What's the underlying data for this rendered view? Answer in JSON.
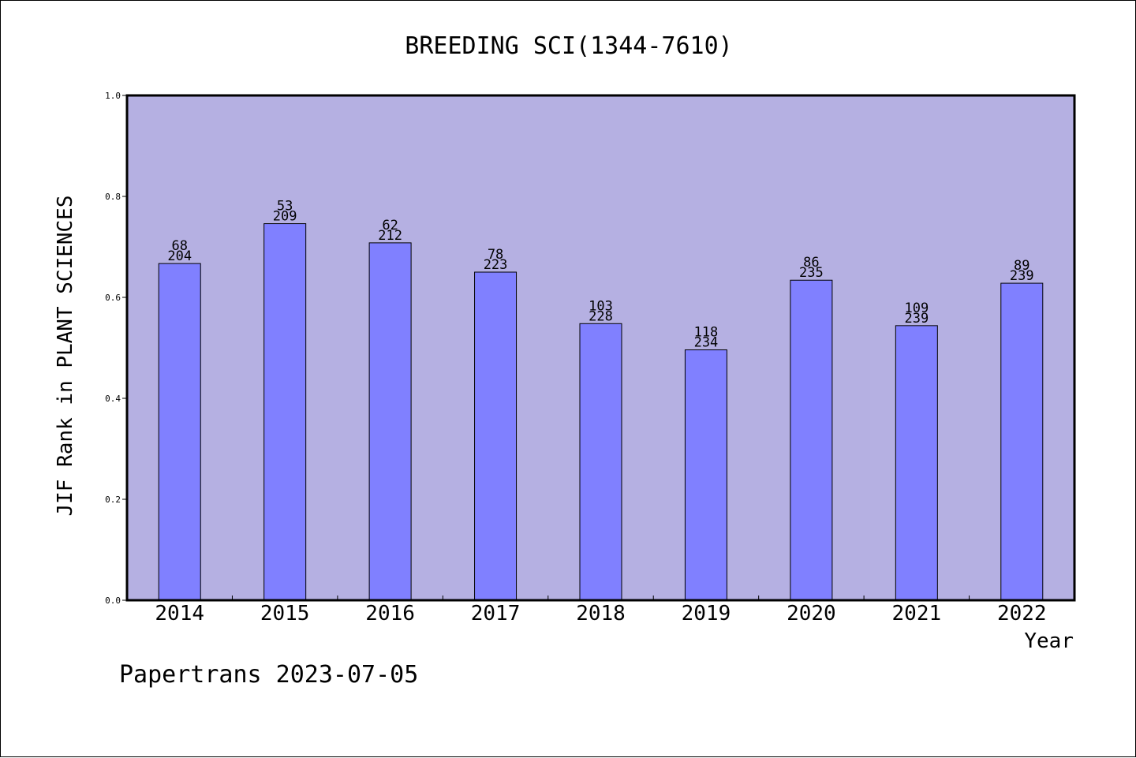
{
  "chart_data": {
    "type": "bar",
    "title": "BREEDING SCI(1344-7610)",
    "xlabel": "Year",
    "ylabel": "JIF Rank in PLANT SCIENCES",
    "categories": [
      "2014",
      "2015",
      "2016",
      "2017",
      "2018",
      "2019",
      "2020",
      "2021",
      "2022"
    ],
    "values": [
      0.667,
      0.746,
      0.708,
      0.65,
      0.548,
      0.496,
      0.634,
      0.544,
      0.628
    ],
    "labels": [
      [
        "68",
        "204"
      ],
      [
        "53",
        "209"
      ],
      [
        "62",
        "212"
      ],
      [
        "78",
        "223"
      ],
      [
        "103",
        "228"
      ],
      [
        "118",
        "234"
      ],
      [
        "86",
        "235"
      ],
      [
        "109",
        "239"
      ],
      [
        "89",
        "239"
      ]
    ],
    "ylim": [
      0,
      1.0
    ],
    "yticks": [
      "0.0",
      "0.2",
      "0.4",
      "0.6",
      "0.8",
      "1.0"
    ],
    "grid": false,
    "legend": "none",
    "colors": {
      "plot_background": "#b5b0e2",
      "bar_fill": "#8080ff",
      "bar_stroke": "#000000"
    }
  },
  "footer": {
    "credit": "Papertrans 2023-07-05"
  }
}
